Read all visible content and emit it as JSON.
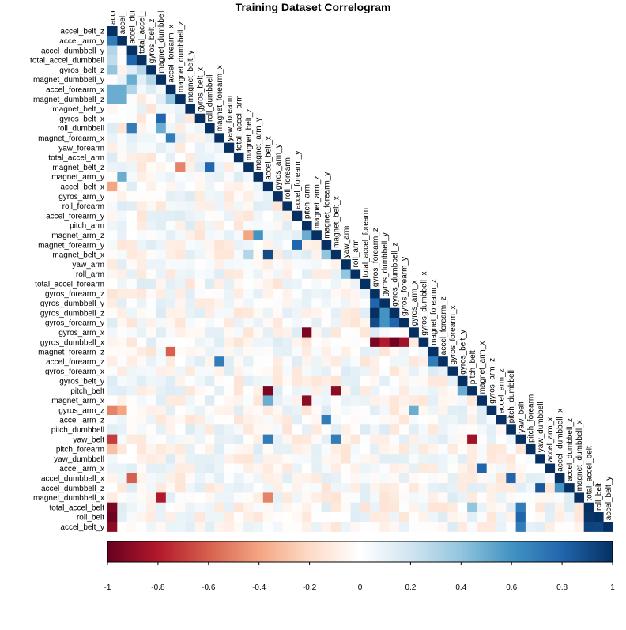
{
  "chart_data": {
    "type": "heatmap",
    "title": "Training Dataset Correlogram",
    "layout": "lower-triangle",
    "grid": false,
    "legend": "bottom",
    "color_scale": {
      "range": [
        -1,
        1
      ],
      "ticks": [
        "-1",
        "-0.8",
        "-0.6",
        "-0.4",
        "-0.2",
        "0",
        "0.2",
        "0.4",
        "0.6",
        "0.8",
        "1"
      ],
      "colors": [
        "#67001f",
        "#b2182b",
        "#d6604d",
        "#f4a582",
        "#fddbc7",
        "#ffffff",
        "#d1e5f0",
        "#92c5de",
        "#4393c3",
        "#2166ac",
        "#053061"
      ]
    },
    "variables": [
      "accel_belt_z",
      "accel_arm_y",
      "accel_dumbbell_y",
      "total_accel_dumbbell",
      "gyros_belt_z",
      "magnet_dumbbell_y",
      "accel_forearm_x",
      "magnet_dumbbell_z",
      "magnet_belt_y",
      "gyros_belt_x",
      "roll_dumbbell",
      "magnet_forearm_x",
      "yaw_forearm",
      "total_accel_arm",
      "magnet_belt_z",
      "magnet_arm_y",
      "accel_belt_x",
      "gyros_arm_y",
      "roll_forearm",
      "accel_forearm_y",
      "pitch_arm",
      "magnet_arm_z",
      "magnet_forearm_y",
      "magnet_belt_x",
      "yaw_arm",
      "roll_arm",
      "total_accel_forearm",
      "gyros_forearm_z",
      "gyros_dumbbell_y",
      "gyros_dumbbell_z",
      "gyros_forearm_y",
      "gyros_arm_x",
      "gyros_dumbbell_x",
      "magnet_forearm_z",
      "accel_forearm_z",
      "gyros_forearm_x",
      "gyros_belt_y",
      "pitch_belt",
      "magnet_arm_x",
      "gyros_arm_z",
      "accel_arm_z",
      "pitch_dumbbell",
      "yaw_belt",
      "pitch_forearm",
      "yaw_dumbbell",
      "accel_arm_x",
      "accel_dumbbell_x",
      "accel_dumbbell_z",
      "magnet_dumbbell_x",
      "total_accel_belt",
      "roll_belt",
      "accel_belt_y"
    ],
    "diagonal_value": 1,
    "notable_correlations": [
      {
        "row": "accel_arm_y",
        "col": "accel_belt_z",
        "value": 0.7
      },
      {
        "row": "accel_dumbbell_y",
        "col": "accel_belt_z",
        "value": 0.3
      },
      {
        "row": "total_accel_dumbbell",
        "col": "accel_belt_z",
        "value": 0.25
      },
      {
        "row": "total_accel_dumbbell",
        "col": "accel_dumbbell_y",
        "value": 0.8
      },
      {
        "row": "gyros_belt_z",
        "col": "accel_belt_z",
        "value": 0.4
      },
      {
        "row": "gyros_belt_z",
        "col": "total_accel_dumbbell",
        "value": 0.3
      },
      {
        "row": "magnet_dumbbell_y",
        "col": "accel_dumbbell_y",
        "value": 0.5
      },
      {
        "row": "magnet_dumbbell_y",
        "col": "gyros_belt_z",
        "value": 0.3
      },
      {
        "row": "accel_forearm_x",
        "col": "accel_belt_z",
        "value": 0.5
      },
      {
        "row": "accel_forearm_x",
        "col": "accel_arm_y",
        "value": 0.5
      },
      {
        "row": "accel_forearm_x",
        "col": "accel_dumbbell_y",
        "value": 0.3
      },
      {
        "row": "magnet_dumbbell_z",
        "col": "accel_belt_z",
        "value": 0.5
      },
      {
        "row": "magnet_dumbbell_z",
        "col": "accel_arm_y",
        "value": 0.5
      },
      {
        "row": "magnet_dumbbell_z",
        "col": "accel_forearm_x",
        "value": 0.4
      },
      {
        "row": "gyros_belt_x",
        "col": "magnet_dumbbell_y",
        "value": 0.8
      },
      {
        "row": "roll_dumbbell",
        "col": "accel_dumbbell_y",
        "value": 0.7
      },
      {
        "row": "roll_dumbbell",
        "col": "magnet_dumbbell_y",
        "value": 0.5
      },
      {
        "row": "magnet_forearm_x",
        "col": "accel_forearm_x",
        "value": 0.7
      },
      {
        "row": "magnet_belt_z",
        "col": "magnet_dumbbell_z",
        "value": -0.5
      },
      {
        "row": "magnet_belt_z",
        "col": "roll_dumbbell",
        "value": 0.8
      },
      {
        "row": "magnet_arm_y",
        "col": "accel_arm_y",
        "value": 0.5
      },
      {
        "row": "accel_belt_x",
        "col": "accel_belt_z",
        "value": -0.4
      },
      {
        "row": "magnet_arm_z",
        "col": "magnet_arm_y",
        "value": 0.6
      },
      {
        "row": "magnet_arm_z",
        "col": "magnet_belt_z",
        "value": -0.4
      },
      {
        "row": "magnet_arm_z",
        "col": "pitch_arm",
        "value": 0.5
      },
      {
        "row": "magnet_forearm_y",
        "col": "accel_forearm_y",
        "value": 0.8
      },
      {
        "row": "magnet_belt_x",
        "col": "accel_belt_x",
        "value": 0.9
      },
      {
        "row": "magnet_belt_x",
        "col": "magnet_belt_z",
        "value": 0.3
      },
      {
        "row": "magnet_belt_x",
        "col": "magnet_forearm_y",
        "value": 0.4
      },
      {
        "row": "roll_arm",
        "col": "yaw_arm",
        "value": 0.4
      },
      {
        "row": "gyros_dumbbell_y",
        "col": "gyros_forearm_z",
        "value": 0.8
      },
      {
        "row": "gyros_dumbbell_z",
        "col": "gyros_forearm_z",
        "value": 1.0
      },
      {
        "row": "gyros_dumbbell_z",
        "col": "gyros_dumbbell_y",
        "value": 0.6
      },
      {
        "row": "gyros_forearm_y",
        "col": "gyros_forearm_z",
        "value": 0.9
      },
      {
        "row": "gyros_forearm_y",
        "col": "gyros_dumbbell_y",
        "value": 0.6
      },
      {
        "row": "gyros_forearm_y",
        "col": "gyros_dumbbell_z",
        "value": 0.8
      },
      {
        "row": "gyros_arm_x",
        "col": "pitch_arm",
        "value": -0.95
      },
      {
        "row": "gyros_dumbbell_x",
        "col": "gyros_forearm_z",
        "value": -0.95
      },
      {
        "row": "gyros_dumbbell_x",
        "col": "gyros_dumbbell_y",
        "value": -0.8
      },
      {
        "row": "gyros_dumbbell_x",
        "col": "gyros_dumbbell_z",
        "value": -0.98
      },
      {
        "row": "gyros_dumbbell_x",
        "col": "gyros_forearm_y",
        "value": -0.85
      },
      {
        "row": "magnet_forearm_z",
        "col": "accel_forearm_x",
        "value": -0.6
      },
      {
        "row": "accel_forearm_z",
        "col": "magnet_forearm_x",
        "value": 0.7
      },
      {
        "row": "accel_forearm_z",
        "col": "magnet_forearm_z",
        "value": 0.7
      },
      {
        "row": "pitch_belt",
        "col": "accel_belt_x",
        "value": -0.95
      },
      {
        "row": "pitch_belt",
        "col": "magnet_belt_x",
        "value": -0.9
      },
      {
        "row": "pitch_belt",
        "col": "gyros_belt_y",
        "value": 0.5
      },
      {
        "row": "magnet_arm_x",
        "col": "pitch_arm",
        "value": -0.9
      },
      {
        "row": "magnet_arm_x",
        "col": "accel_belt_x",
        "value": 0.5
      },
      {
        "row": "gyros_arm_z",
        "col": "accel_belt_z",
        "value": -0.5
      },
      {
        "row": "gyros_arm_z",
        "col": "accel_arm_y",
        "value": -0.4
      },
      {
        "row": "gyros_arm_z",
        "col": "gyros_arm_x",
        "value": 0.5
      },
      {
        "row": "accel_arm_z",
        "col": "magnet_forearm_y",
        "value": 0.7
      },
      {
        "row": "yaw_belt",
        "col": "accel_belt_z",
        "value": -0.7
      },
      {
        "row": "yaw_belt",
        "col": "accel_belt_x",
        "value": 0.7
      },
      {
        "row": "yaw_belt",
        "col": "magnet_belt_x",
        "value": 0.7
      },
      {
        "row": "yaw_belt",
        "col": "pitch_belt",
        "value": -0.85
      },
      {
        "row": "pitch_forearm",
        "col": "accel_belt_z",
        "value": -0.3
      },
      {
        "row": "accel_arm_x",
        "col": "magnet_arm_x",
        "value": 0.8
      },
      {
        "row": "accel_dumbbell_x",
        "col": "accel_dumbbell_y",
        "value": -0.6
      },
      {
        "row": "accel_dumbbell_x",
        "col": "pitch_dumbbell",
        "value": 0.8
      },
      {
        "row": "accel_dumbbell_z",
        "col": "yaw_dumbbell",
        "value": 0.85
      },
      {
        "row": "accel_dumbbell_z",
        "col": "accel_dumbbell_x",
        "value": 0.6
      },
      {
        "row": "magnet_dumbbell_x",
        "col": "magnet_dumbbell_y",
        "value": -0.8
      },
      {
        "row": "magnet_dumbbell_x",
        "col": "accel_belt_x",
        "value": -0.5
      },
      {
        "row": "total_accel_belt",
        "col": "accel_belt_z",
        "value": -0.95
      },
      {
        "row": "total_accel_belt",
        "col": "yaw_belt",
        "value": 0.7
      },
      {
        "row": "total_accel_belt",
        "col": "pitch_belt",
        "value": 0.4
      },
      {
        "row": "roll_belt",
        "col": "accel_belt_z",
        "value": -0.98
      },
      {
        "row": "roll_belt",
        "col": "yaw_belt",
        "value": 0.8
      },
      {
        "row": "roll_belt",
        "col": "total_accel_belt",
        "value": 0.98
      },
      {
        "row": "accel_belt_y",
        "col": "accel_belt_z",
        "value": -0.9
      },
      {
        "row": "accel_belt_y",
        "col": "yaw_belt",
        "value": 0.7
      },
      {
        "row": "accel_belt_y",
        "col": "total_accel_belt",
        "value": 0.93
      },
      {
        "row": "accel_belt_y",
        "col": "roll_belt",
        "value": 0.92
      }
    ]
  }
}
